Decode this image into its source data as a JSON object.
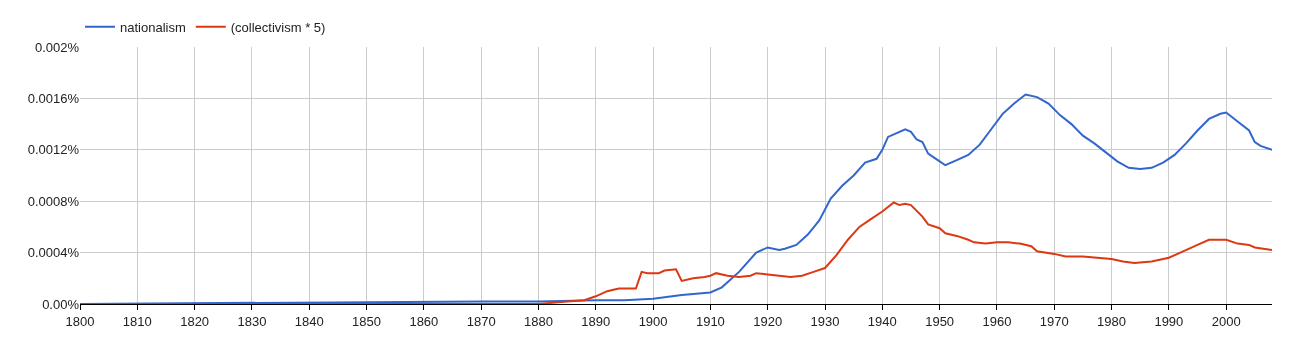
{
  "chart_data": {
    "type": "line",
    "xlim": [
      1800,
      2008
    ],
    "xticks": [
      1800,
      1810,
      1820,
      1830,
      1840,
      1850,
      1860,
      1870,
      1880,
      1890,
      1900,
      1910,
      1920,
      1930,
      1940,
      1950,
      1960,
      1970,
      1980,
      1990,
      2000
    ],
    "ylim": [
      0,
      0.002
    ],
    "yticks": [
      {
        "value": 0,
        "label": "0.00%"
      },
      {
        "value": 0.0004,
        "label": "0.0004%"
      },
      {
        "value": 0.0008,
        "label": "0.0008%"
      },
      {
        "value": 0.0012,
        "label": "0.0012%"
      },
      {
        "value": 0.0016,
        "label": "0.0016%"
      },
      {
        "value": 0.002,
        "label": "0.002%"
      }
    ],
    "grid": true,
    "legend": "top left",
    "marker": "none",
    "line_style": "solid",
    "series": [
      {
        "name": "nationalism",
        "color": "#3366cc",
        "x": [
          1800,
          1870,
          1880,
          1890,
          1895,
          1900,
          1905,
          1910,
          1912,
          1915,
          1918,
          1920,
          1922,
          1923,
          1925,
          1927,
          1929,
          1931,
          1933,
          1935,
          1937,
          1939,
          1940,
          1941,
          1943,
          1944,
          1945,
          1946,
          1947,
          1948,
          1950,
          1951,
          1953,
          1955,
          1957,
          1959,
          1961,
          1962,
          1963,
          1965,
          1967,
          1969,
          1971,
          1973,
          1975,
          1977,
          1979,
          1981,
          1983,
          1985,
          1987,
          1989,
          1991,
          1993,
          1995,
          1997,
          1999,
          2000,
          2002,
          2004,
          2005,
          2006,
          2008
        ],
        "values": [
          0,
          2e-05,
          2e-05,
          3e-05,
          3e-05,
          4e-05,
          7e-05,
          9e-05,
          0.00013,
          0.00025,
          0.0004,
          0.00044,
          0.00042,
          0.00043,
          0.00046,
          0.00054,
          0.00065,
          0.00082,
          0.00092,
          0.001,
          0.0011,
          0.00113,
          0.0012,
          0.0013,
          0.00134,
          0.00136,
          0.00134,
          0.00128,
          0.00126,
          0.00117,
          0.00111,
          0.00108,
          0.00112,
          0.00116,
          0.00124,
          0.00136,
          0.00148,
          0.00152,
          0.00156,
          0.00163,
          0.00161,
          0.00156,
          0.00147,
          0.0014,
          0.00131,
          0.00125,
          0.00118,
          0.00111,
          0.00106,
          0.00105,
          0.00106,
          0.0011,
          0.00116,
          0.00125,
          0.00135,
          0.00144,
          0.00148,
          0.00149,
          0.00142,
          0.00135,
          0.00126,
          0.00123,
          0.0012
        ]
      },
      {
        "name": "(collectivism * 5)",
        "color": "#dc3912",
        "x": [
          1800,
          1880,
          1885,
          1888,
          1890,
          1892,
          1894,
          1897,
          1898,
          1899,
          1901,
          1902,
          1904,
          1905,
          1907,
          1909,
          1910,
          1911,
          1913,
          1915,
          1917,
          1918,
          1920,
          1922,
          1924,
          1926,
          1928,
          1930,
          1932,
          1934,
          1936,
          1938,
          1940,
          1942,
          1943,
          1944,
          1945,
          1947,
          1948,
          1950,
          1951,
          1953,
          1955,
          1956,
          1958,
          1960,
          1962,
          1964,
          1966,
          1967,
          1970,
          1972,
          1975,
          1980,
          1982,
          1984,
          1987,
          1990,
          1992,
          1995,
          1997,
          2000,
          2002,
          2004,
          2005,
          2008
        ],
        "values": [
          0,
          0,
          2e-05,
          3e-05,
          6e-05,
          0.0001,
          0.00012,
          0.00012,
          0.00025,
          0.00024,
          0.00024,
          0.00026,
          0.00027,
          0.00018,
          0.0002,
          0.00021,
          0.00022,
          0.00024,
          0.00022,
          0.00021,
          0.00022,
          0.00024,
          0.00023,
          0.00022,
          0.00021,
          0.00022,
          0.00025,
          0.00028,
          0.00038,
          0.0005,
          0.0006,
          0.00066,
          0.00072,
          0.00079,
          0.00077,
          0.00078,
          0.00077,
          0.00068,
          0.00062,
          0.00059,
          0.00055,
          0.00053,
          0.0005,
          0.00048,
          0.00047,
          0.00048,
          0.00048,
          0.00047,
          0.00045,
          0.00041,
          0.00039,
          0.00037,
          0.00037,
          0.00035,
          0.00033,
          0.00032,
          0.00033,
          0.00036,
          0.0004,
          0.00046,
          0.0005,
          0.0005,
          0.00047,
          0.00046,
          0.00044,
          0.00042
        ]
      }
    ]
  }
}
